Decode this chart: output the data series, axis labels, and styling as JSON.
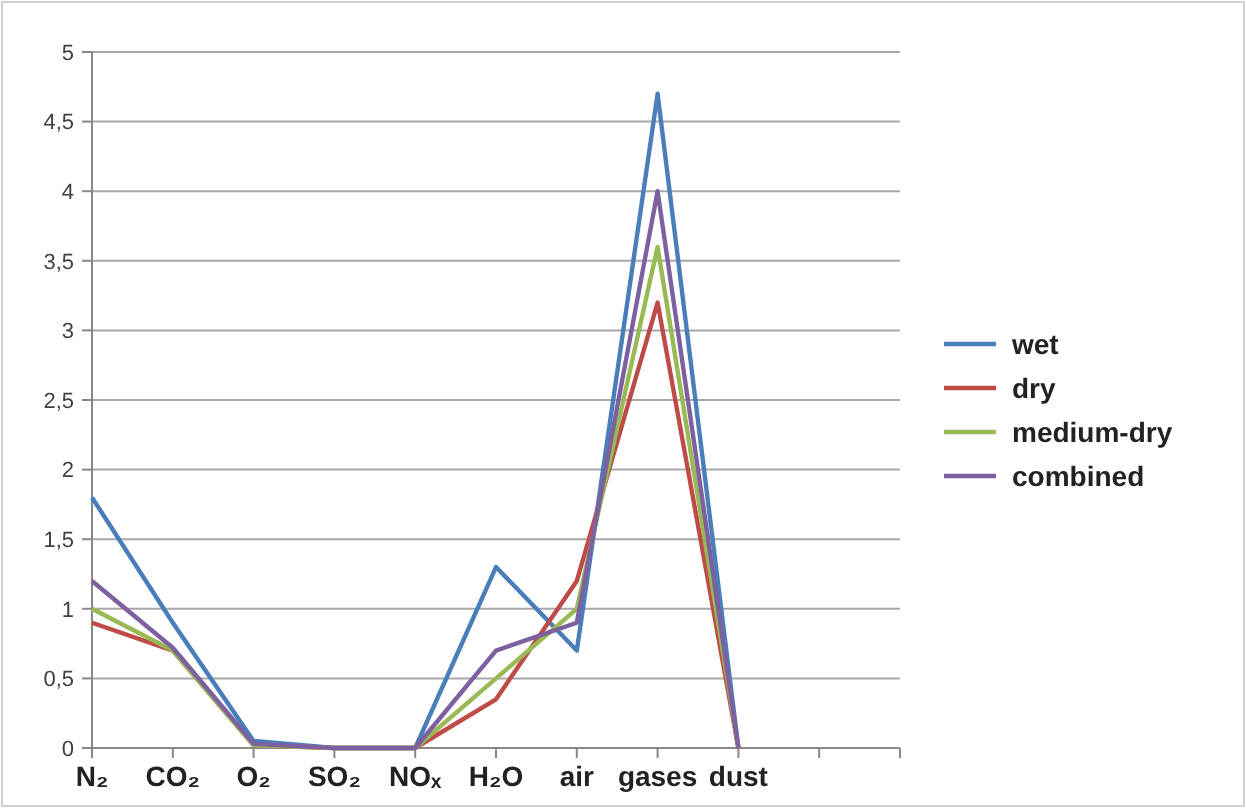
{
  "chart_data": {
    "type": "line",
    "categories": [
      "N₂",
      "CO₂",
      "O₂",
      "SO₂",
      "NOₓ",
      "H₂O",
      "air",
      "gases",
      "dust",
      null,
      null
    ],
    "series": [
      {
        "name": "wet",
        "color": "#4a7ebb",
        "values": [
          1.8,
          0.9,
          0.05,
          0,
          0,
          1.3,
          0.7,
          4.7,
          0,
          null,
          null
        ]
      },
      {
        "name": "dry",
        "color": "#be4b48",
        "values": [
          0.9,
          0.7,
          0.02,
          0,
          0,
          0.35,
          1.2,
          3.2,
          0,
          null,
          null
        ]
      },
      {
        "name": "medium-dry",
        "color": "#98b954",
        "values": [
          1.0,
          0.7,
          0.02,
          0,
          0,
          0.5,
          1.0,
          3.6,
          0,
          null,
          null
        ]
      },
      {
        "name": "combined",
        "color": "#7d60a0",
        "values": [
          1.2,
          0.72,
          0.03,
          0,
          0,
          0.7,
          0.9,
          4.0,
          0,
          null,
          null
        ]
      }
    ],
    "ylim": [
      0,
      5
    ],
    "yticks": [
      0,
      {
        "value": 0.5,
        "label": "0,5"
      },
      1,
      {
        "value": 1.5,
        "label": "1,5"
      },
      2,
      {
        "value": 2.5,
        "label": "2,5"
      },
      3,
      {
        "value": 3.5,
        "label": "3,5"
      },
      4,
      {
        "value": 4.5,
        "label": "4,5"
      },
      5
    ],
    "grid": "y",
    "legend": "right",
    "marker": "none",
    "line_style": "solid"
  }
}
